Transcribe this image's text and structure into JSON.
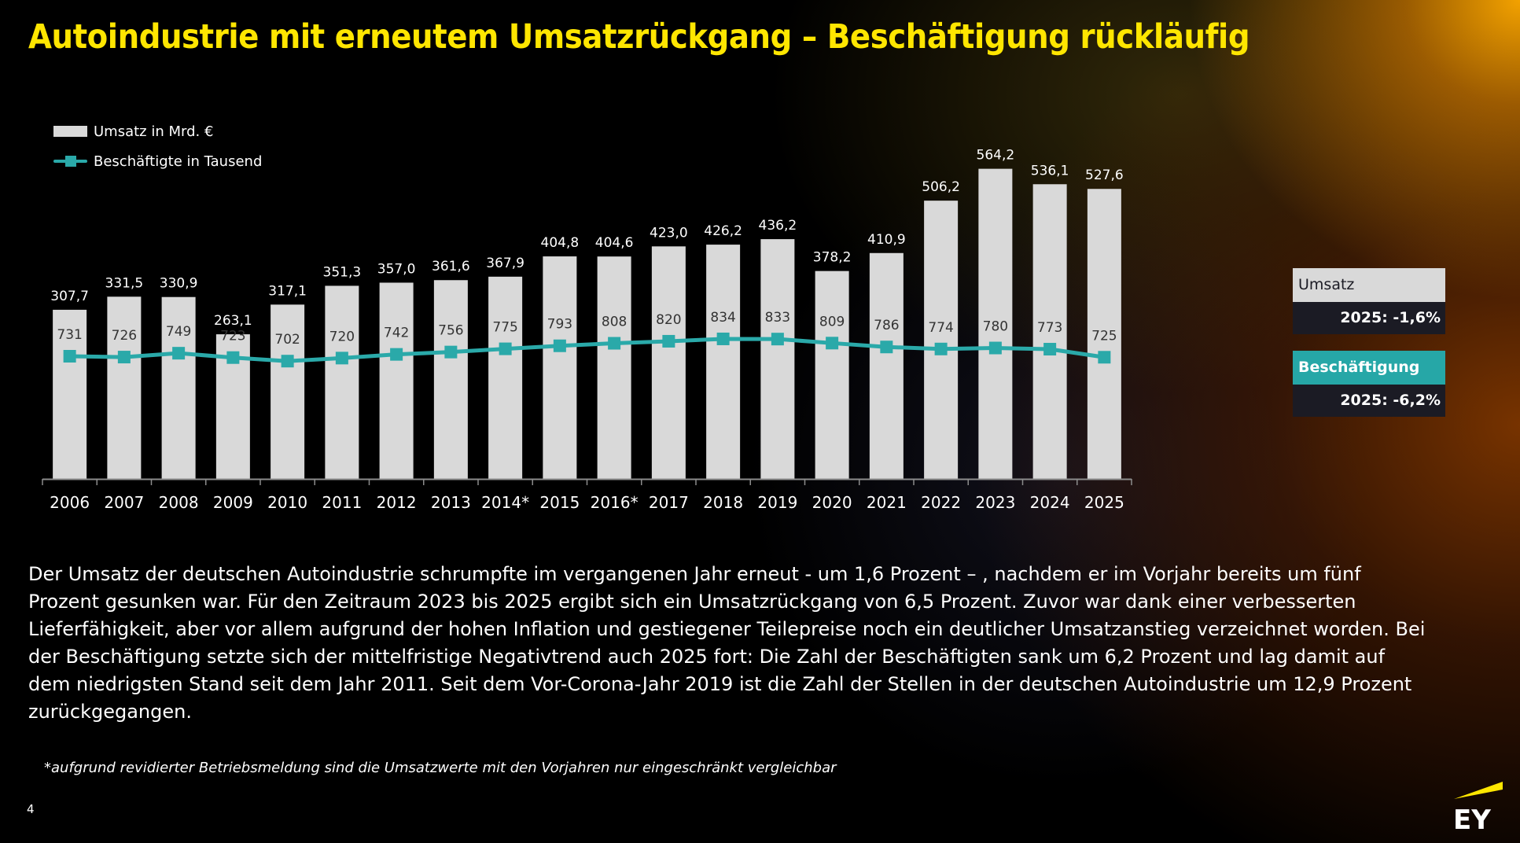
{
  "title": "Autoindustrie mit erneutem Umsatzrückgang – Beschäftigung rückläufig",
  "legend": {
    "bar_label": "Umsatz in Mrd. €",
    "line_label": "Beschäftigte in Tausend"
  },
  "colors": {
    "title": "#ffe600",
    "bar": "#d9d9d9",
    "line": "#2aa9a9",
    "kpi_dark": "#1b1b24"
  },
  "chart_data": {
    "type": "bar",
    "title": "",
    "xlabel": "",
    "ylabel": "",
    "categories": [
      "2006",
      "2007",
      "2008",
      "2009",
      "2010",
      "2011",
      "2012",
      "2013",
      "2014*",
      "2015",
      "2016*",
      "2017",
      "2018",
      "2019",
      "2020",
      "2021",
      "2022",
      "2023",
      "2024",
      "2025"
    ],
    "series": [
      {
        "name": "Umsatz in Mrd. €",
        "type": "bar",
        "values": [
          307.7,
          331.5,
          330.9,
          263.1,
          317.1,
          351.3,
          357.0,
          361.6,
          367.9,
          404.8,
          404.6,
          423.0,
          426.2,
          436.2,
          378.2,
          410.9,
          506.2,
          564.2,
          536.1,
          527.6
        ],
        "labels": [
          "307,7",
          "331,5",
          "330,9",
          "263,1",
          "317,1",
          "351,3",
          "357,0",
          "361,6",
          "367,9",
          "404,8",
          "404,6",
          "423,0",
          "426,2",
          "436,2",
          "378,2",
          "410,9",
          "506,2",
          "564,2",
          "536,1",
          "527,6"
        ]
      },
      {
        "name": "Beschäftigte in Tausend",
        "type": "line",
        "values": [
          731,
          726,
          749,
          723,
          702,
          720,
          742,
          756,
          775,
          793,
          808,
          820,
          834,
          833,
          809,
          786,
          774,
          780,
          773,
          725
        ],
        "labels": [
          "731",
          "726",
          "749",
          "723",
          "702",
          "720",
          "742",
          "756",
          "775",
          "793",
          "808",
          "820",
          "834",
          "833",
          "809",
          "786",
          "774",
          "780",
          "773",
          "725"
        ]
      }
    ],
    "grid": false,
    "legend_position": "top-left"
  },
  "kpis": {
    "umsatz": {
      "label": "Umsatz",
      "value": "2025: -1,6%"
    },
    "beschaeftigung": {
      "label": "Beschäftigung",
      "value": "2025: -6,2%"
    }
  },
  "paragraph": "Der Umsatz der deutschen Autoindustrie schrumpfte im vergangenen Jahr erneut - um 1,6 Prozent – , nachdem er im Vorjahr bereits um fünf Prozent gesunken war. Für den Zeitraum 2023 bis 2025 ergibt sich ein Umsatzrückgang von 6,5 Prozent. Zuvor war dank einer verbesserten Lieferfähigkeit, aber vor allem aufgrund der hohen Inflation und gestiegener Teilepreise noch ein deutlicher Umsatzanstieg verzeichnet worden. Bei der Beschäftigung setzte sich der mittelfristige Negativtrend auch 2025 fort: Die Zahl der Beschäftigten sank um 6,2 Prozent und lag damit auf dem niedrigsten Stand seit dem Jahr 2011. Seit dem Vor-Corona-Jahr 2019 ist die Zahl der Stellen in der deutschen Autoindustrie um 12,9 Prozent zurückgegangen.",
  "footnote": "*aufgrund revidierter Betriebsmeldung sind die Umsatzwerte mit den Vorjahren nur eingeschränkt vergleichbar",
  "page_number": "4",
  "logo": {
    "text": "EY",
    "icon": "ey-logo"
  }
}
